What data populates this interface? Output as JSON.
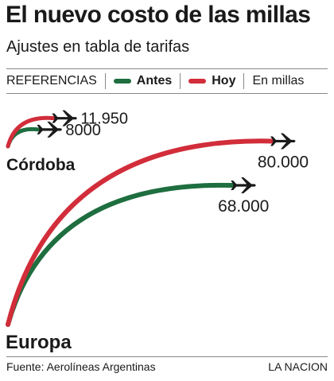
{
  "title": "El nuevo costo de las millas",
  "subtitle": "Ajustes en tabla de tarifas",
  "legend": {
    "label": "REFERENCIAS",
    "unit": "En millas"
  },
  "colors": {
    "antes": "#1e6e3f",
    "hoy": "#d22d3a",
    "text": "#1a1a1a"
  },
  "footer": {
    "source": "Fuente: Aerolíneas Argentinas",
    "publisher": "LA NACION"
  },
  "chart_data": {
    "type": "bar",
    "categories": [
      "Córdoba",
      "Europa"
    ],
    "series": [
      {
        "name": "Antes",
        "color": "#1e6e3f",
        "values": [
          8000,
          68000
        ],
        "labels": [
          "8000",
          "68.000"
        ]
      },
      {
        "name": "Hoy",
        "color": "#d22d3a",
        "values": [
          11950,
          80000
        ],
        "labels": [
          "11.950",
          "80.000"
        ]
      }
    ],
    "icon": "airplane-icon"
  }
}
